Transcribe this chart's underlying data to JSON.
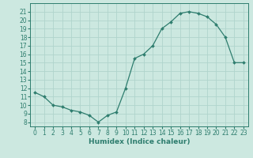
{
  "x": [
    0,
    1,
    2,
    3,
    4,
    5,
    6,
    7,
    8,
    9,
    10,
    11,
    12,
    13,
    14,
    15,
    16,
    17,
    18,
    19,
    20,
    21,
    22,
    23
  ],
  "y": [
    11.5,
    11.0,
    10.0,
    9.8,
    9.4,
    9.2,
    8.8,
    8.0,
    8.8,
    9.2,
    12.0,
    15.5,
    16.0,
    17.0,
    19.0,
    19.8,
    20.8,
    21.0,
    20.8,
    20.4,
    19.5,
    18.0,
    15.0,
    15.0
  ],
  "line_color": "#2e7d6e",
  "marker": "D",
  "markersize": 2.0,
  "linewidth": 0.9,
  "bg_color": "#cce8e0",
  "grid_color": "#b0d4cc",
  "xlabel": "Humidex (Indice chaleur)",
  "xlim": [
    -0.5,
    23.5
  ],
  "ylim": [
    7.5,
    22.0
  ],
  "xticks": [
    0,
    1,
    2,
    3,
    4,
    5,
    6,
    7,
    8,
    9,
    10,
    11,
    12,
    13,
    14,
    15,
    16,
    17,
    18,
    19,
    20,
    21,
    22,
    23
  ],
  "yticks": [
    8,
    9,
    10,
    11,
    12,
    13,
    14,
    15,
    16,
    17,
    18,
    19,
    20,
    21
  ],
  "xlabel_fontsize": 6.5,
  "tick_fontsize": 5.5
}
